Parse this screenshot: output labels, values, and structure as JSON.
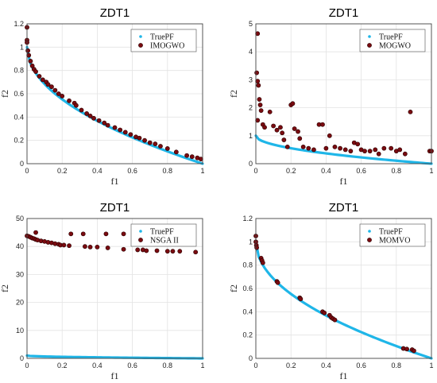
{
  "colors": {
    "truepf": "#1fb6e8",
    "points": "#7a0b10",
    "point_stroke": "#2a0000",
    "grid": "#e3e3e3",
    "axis": "#444444"
  },
  "chart_data": [
    {
      "type": "scatter",
      "title": "ZDT1",
      "xlabel": "f1",
      "ylabel": "f2",
      "xlim": [
        0,
        1
      ],
      "ylim": [
        0,
        1.2
      ],
      "xticks": [
        "0",
        "0.2",
        "0.4",
        "0.6",
        "0.8",
        "1"
      ],
      "yticks": [
        "0",
        "0.2",
        "0.4",
        "0.6",
        "0.8",
        "1",
        "1.2"
      ],
      "grid": true,
      "legend": "top-right",
      "series": [
        {
          "name": "TruePF",
          "style": "line",
          "points": [
            [
              0,
              1
            ],
            [
              0.01,
              0.9
            ],
            [
              0.04,
              0.8
            ],
            [
              0.09,
              0.7
            ],
            [
              0.16,
              0.6
            ],
            [
              0.25,
              0.5
            ],
            [
              0.36,
              0.4
            ],
            [
              0.49,
              0.3
            ],
            [
              0.64,
              0.2
            ],
            [
              0.81,
              0.1
            ],
            [
              1,
              0
            ]
          ]
        },
        {
          "name": "IMOGWO",
          "style": "markers",
          "points": [
            [
              0,
              1.17
            ],
            [
              0,
              1.06
            ],
            [
              0,
              1.04
            ],
            [
              0.005,
              0.97
            ],
            [
              0.01,
              0.93
            ],
            [
              0.02,
              0.88
            ],
            [
              0.03,
              0.84
            ],
            [
              0.04,
              0.81
            ],
            [
              0.05,
              0.79
            ],
            [
              0.07,
              0.75
            ],
            [
              0.09,
              0.72
            ],
            [
              0.11,
              0.7
            ],
            [
              0.12,
              0.68
            ],
            [
              0.14,
              0.66
            ],
            [
              0.16,
              0.63
            ],
            [
              0.18,
              0.6
            ],
            [
              0.2,
              0.58
            ],
            [
              0.24,
              0.54
            ],
            [
              0.27,
              0.52
            ],
            [
              0.28,
              0.5
            ],
            [
              0.31,
              0.46
            ],
            [
              0.34,
              0.43
            ],
            [
              0.36,
              0.41
            ],
            [
              0.38,
              0.39
            ],
            [
              0.41,
              0.37
            ],
            [
              0.44,
              0.35
            ],
            [
              0.46,
              0.33
            ],
            [
              0.5,
              0.31
            ],
            [
              0.53,
              0.29
            ],
            [
              0.56,
              0.27
            ],
            [
              0.59,
              0.25
            ],
            [
              0.62,
              0.23
            ],
            [
              0.64,
              0.22
            ],
            [
              0.67,
              0.2
            ],
            [
              0.7,
              0.18
            ],
            [
              0.73,
              0.17
            ],
            [
              0.76,
              0.15
            ],
            [
              0.8,
              0.13
            ],
            [
              0.85,
              0.1
            ],
            [
              0.91,
              0.07
            ],
            [
              0.94,
              0.06
            ],
            [
              0.97,
              0.05
            ],
            [
              0.99,
              0.04
            ]
          ]
        }
      ]
    },
    {
      "type": "scatter",
      "title": "ZDT1",
      "xlabel": "f1",
      "ylabel": "f2",
      "xlim": [
        0,
        1
      ],
      "ylim": [
        0,
        5
      ],
      "xticks": [
        "0",
        "0.2",
        "0.4",
        "0.6",
        "0.8",
        "1"
      ],
      "yticks": [
        "0",
        "1",
        "2",
        "3",
        "4",
        "5"
      ],
      "grid": true,
      "legend": "top-right",
      "series": [
        {
          "name": "TruePF",
          "style": "line",
          "points": [
            [
              0,
              1
            ],
            [
              0.01,
              0.9
            ],
            [
              0.04,
              0.8
            ],
            [
              0.09,
              0.7
            ],
            [
              0.16,
              0.6
            ],
            [
              0.25,
              0.5
            ],
            [
              0.36,
              0.4
            ],
            [
              0.49,
              0.3
            ],
            [
              0.64,
              0.2
            ],
            [
              0.81,
              0.1
            ],
            [
              1,
              0
            ]
          ]
        },
        {
          "name": "MOGWO",
          "style": "markers",
          "points": [
            [
              0.01,
              4.65
            ],
            [
              0.005,
              3.25
            ],
            [
              0.01,
              2.95
            ],
            [
              0.015,
              2.8
            ],
            [
              0.02,
              2.3
            ],
            [
              0.025,
              2.1
            ],
            [
              0.03,
              1.9
            ],
            [
              0.01,
              1.55
            ],
            [
              0.04,
              1.4
            ],
            [
              0.05,
              1.3
            ],
            [
              0.08,
              1.85
            ],
            [
              0.1,
              1.35
            ],
            [
              0.12,
              1.2
            ],
            [
              0.14,
              1.3
            ],
            [
              0.15,
              1.1
            ],
            [
              0.16,
              0.85
            ],
            [
              0.18,
              0.6
            ],
            [
              0.2,
              2.1
            ],
            [
              0.21,
              2.15
            ],
            [
              0.22,
              1.25
            ],
            [
              0.24,
              1.15
            ],
            [
              0.25,
              0.9
            ],
            [
              0.27,
              0.6
            ],
            [
              0.3,
              0.55
            ],
            [
              0.33,
              0.5
            ],
            [
              0.36,
              1.4
            ],
            [
              0.38,
              1.4
            ],
            [
              0.4,
              0.55
            ],
            [
              0.42,
              1.0
            ],
            [
              0.45,
              0.6
            ],
            [
              0.48,
              0.55
            ],
            [
              0.51,
              0.5
            ],
            [
              0.54,
              0.45
            ],
            [
              0.56,
              0.75
            ],
            [
              0.58,
              0.7
            ],
            [
              0.6,
              0.5
            ],
            [
              0.62,
              0.45
            ],
            [
              0.65,
              0.45
            ],
            [
              0.68,
              0.5
            ],
            [
              0.7,
              0.35
            ],
            [
              0.73,
              0.55
            ],
            [
              0.77,
              0.55
            ],
            [
              0.8,
              0.45
            ],
            [
              0.82,
              0.5
            ],
            [
              0.85,
              0.35
            ],
            [
              0.88,
              1.85
            ],
            [
              0.99,
              0.45
            ],
            [
              1.0,
              0.45
            ]
          ]
        }
      ]
    },
    {
      "type": "scatter",
      "title": "ZDT1",
      "xlabel": "f1",
      "ylabel": "f2",
      "xlim": [
        0,
        1
      ],
      "ylim": [
        0,
        50
      ],
      "xticks": [
        "0",
        "0.2",
        "0.4",
        "0.6",
        "0.8",
        "1"
      ],
      "yticks": [
        "0",
        "10",
        "20",
        "30",
        "40",
        "50"
      ],
      "grid": true,
      "legend": "top-right",
      "series": [
        {
          "name": "TruePF",
          "style": "line",
          "points": [
            [
              0,
              1
            ],
            [
              0.01,
              0.9
            ],
            [
              0.04,
              0.8
            ],
            [
              0.09,
              0.7
            ],
            [
              0.16,
              0.6
            ],
            [
              0.25,
              0.5
            ],
            [
              0.36,
              0.4
            ],
            [
              0.49,
              0.3
            ],
            [
              0.64,
              0.2
            ],
            [
              0.81,
              0.1
            ],
            [
              1,
              0
            ]
          ]
        },
        {
          "name": "NSGA II",
          "style": "markers",
          "points": [
            [
              0,
              43.8
            ],
            [
              0.01,
              43.6
            ],
            [
              0.02,
              43.3
            ],
            [
              0.03,
              43.0
            ],
            [
              0.04,
              42.8
            ],
            [
              0.05,
              42.5
            ],
            [
              0.06,
              42.3
            ],
            [
              0.08,
              42.0
            ],
            [
              0.1,
              41.8
            ],
            [
              0.12,
              41.5
            ],
            [
              0.14,
              41.3
            ],
            [
              0.16,
              41.0
            ],
            [
              0.18,
              40.8
            ],
            [
              0.19,
              40.5
            ],
            [
              0.21,
              40.5
            ],
            [
              0.24,
              40.3
            ],
            [
              0.25,
              44.5
            ],
            [
              0.32,
              44.5
            ],
            [
              0.33,
              40.0
            ],
            [
              0.36,
              39.8
            ],
            [
              0.4,
              39.8
            ],
            [
              0.45,
              44.5
            ],
            [
              0.46,
              39.5
            ],
            [
              0.55,
              44.5
            ],
            [
              0.55,
              39.0
            ],
            [
              0.63,
              38.8
            ],
            [
              0.66,
              38.8
            ],
            [
              0.68,
              38.5
            ],
            [
              0.74,
              38.5
            ],
            [
              0.8,
              38.3
            ],
            [
              0.83,
              38.3
            ],
            [
              0.87,
              38.3
            ],
            [
              0.96,
              38.0
            ],
            [
              0.66,
              45.0
            ],
            [
              0.05,
              45.0
            ]
          ]
        }
      ]
    },
    {
      "type": "scatter",
      "title": "ZDT1",
      "xlabel": "f1",
      "ylabel": "f2",
      "xlim": [
        0,
        1
      ],
      "ylim": [
        0,
        1.2
      ],
      "xticks": [
        "0",
        "0.2",
        "0.4",
        "0.6",
        "0.8",
        "1"
      ],
      "yticks": [
        "0",
        "0.2",
        "0.4",
        "0.6",
        "0.8",
        "1",
        "1.2"
      ],
      "grid": true,
      "legend": "top-right",
      "series": [
        {
          "name": "TruePF",
          "style": "line",
          "points": [
            [
              0,
              1
            ],
            [
              0.01,
              0.9
            ],
            [
              0.04,
              0.8
            ],
            [
              0.09,
              0.7
            ],
            [
              0.16,
              0.6
            ],
            [
              0.25,
              0.5
            ],
            [
              0.36,
              0.4
            ],
            [
              0.49,
              0.3
            ],
            [
              0.64,
              0.2
            ],
            [
              0.81,
              0.1
            ],
            [
              1,
              0
            ]
          ]
        },
        {
          "name": "MOMVO",
          "style": "markers",
          "points": [
            [
              0,
              1.05
            ],
            [
              0,
              1.0
            ],
            [
              0.003,
              0.97
            ],
            [
              0.005,
              0.95
            ],
            [
              0.03,
              0.86
            ],
            [
              0.035,
              0.84
            ],
            [
              0.04,
              0.82
            ],
            [
              0.12,
              0.66
            ],
            [
              0.125,
              0.65
            ],
            [
              0.25,
              0.52
            ],
            [
              0.255,
              0.51
            ],
            [
              0.38,
              0.4
            ],
            [
              0.39,
              0.39
            ],
            [
              0.42,
              0.37
            ],
            [
              0.43,
              0.35
            ],
            [
              0.44,
              0.34
            ],
            [
              0.45,
              0.33
            ],
            [
              0.84,
              0.085
            ],
            [
              0.86,
              0.08
            ],
            [
              0.89,
              0.075
            ],
            [
              0.9,
              0.065
            ]
          ]
        }
      ]
    }
  ]
}
